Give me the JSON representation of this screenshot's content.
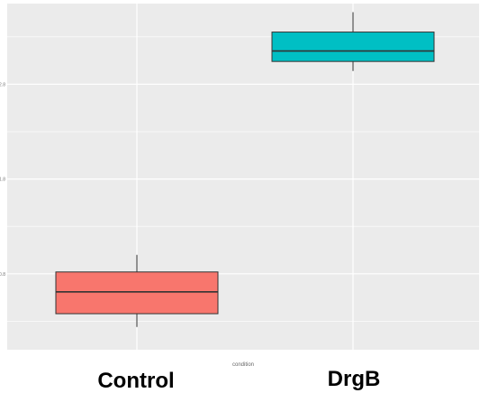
{
  "chart_data": {
    "type": "boxplot",
    "title": "",
    "xlabel": "condition",
    "ylabel": "",
    "categories": [
      "Control",
      "DrgB"
    ],
    "ylim": [
      0,
      3.4
    ],
    "yticks": [
      0.8,
      1.8,
      2.8
    ],
    "grid": true,
    "legend": "none",
    "boxes": [
      {
        "category": "Control",
        "whisker_low": 0.24,
        "q1": 0.38,
        "median": 0.61,
        "q3": 0.82,
        "whisker_high": 1.0,
        "color": "#F8766D"
      },
      {
        "category": "DrgB",
        "whisker_low": 2.94,
        "q1": 3.04,
        "median": 3.15,
        "q3": 3.35,
        "whisker_high": 3.56,
        "color": "#00BFC4"
      }
    ]
  },
  "colors": {
    "panel": "#EBEBEB",
    "grid": "#FFFFFF",
    "box_outline": "#333333",
    "whisker": "#333333"
  }
}
